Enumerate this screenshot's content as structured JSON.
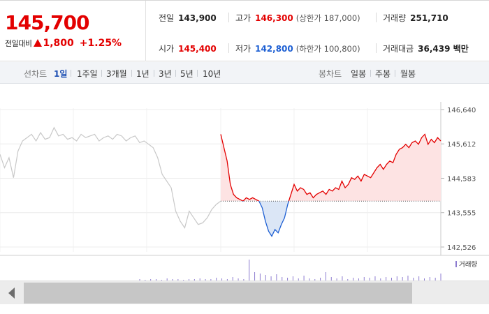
{
  "quote": {
    "price": "145,700",
    "change_label": "전일대비",
    "change_value": "1,800",
    "change_pct": "+1.25%",
    "prev_close_label": "전일",
    "prev_close": "143,900",
    "high_label": "고가",
    "high": "146,300",
    "upper_limit": "(상한가 187,000)",
    "volume_label": "거래량",
    "volume": "251,710",
    "open_label": "시가",
    "open": "145,400",
    "low_label": "저가",
    "low": "142,800",
    "lower_limit": "(하한가 100,800)",
    "amount_label": "거래대금",
    "amount": "36,439 백만"
  },
  "periods": {
    "label": "선차트",
    "items": [
      "1일",
      "1주일",
      "3개월",
      "1년",
      "3년",
      "5년",
      "10년"
    ],
    "active": "1일"
  },
  "candles": {
    "label": "봉차트",
    "items": [
      "일봉",
      "주봉",
      "월봉"
    ]
  },
  "volume_legend": "거래량",
  "colors": {
    "up": "#e30000",
    "down": "#1d5fd3",
    "prev": "#c8c8c8"
  },
  "chart_data": {
    "type": "line",
    "ylim": [
      142526,
      146640
    ],
    "yticks": [
      146640,
      145612,
      144583,
      143555,
      142526
    ],
    "ytick_labels": [
      "146,640",
      "145,612",
      "144,583",
      "143,555",
      "142,526"
    ],
    "baseline": 143900,
    "series": [
      {
        "values": [
          145300,
          144900,
          145200,
          144600,
          145400,
          145700,
          145800,
          145900,
          145700,
          145950,
          145750,
          145800,
          146100,
          145850,
          145900,
          145750,
          145800,
          145700,
          145900,
          145800,
          145850,
          145900,
          145700,
          145800,
          145850,
          145750,
          145900,
          145850,
          145700,
          145800,
          145850,
          145650,
          145700,
          145600,
          145500,
          145200,
          144700,
          144500,
          144300,
          143600,
          143300,
          143100,
          143600,
          143400,
          143200,
          143250,
          143400,
          143650,
          143800,
          143900
        ]
      },
      {
        "values": [
          145900,
          145500,
          145100,
          144400,
          144100,
          144000,
          143950,
          143900,
          144000,
          143950,
          144000,
          143950,
          143900,
          143700,
          143300,
          143000,
          142850,
          143050,
          142950,
          143200,
          143400,
          143800,
          144100,
          144400,
          144200,
          144300,
          144250,
          144100,
          144150,
          144000,
          144100,
          144150,
          144200,
          144100,
          144250,
          144200,
          144300,
          144250,
          144500,
          144300,
          144400,
          144600,
          144550,
          144650,
          144500,
          144700,
          144650,
          144600,
          144750,
          144900,
          145000,
          144850,
          145000,
          145100,
          145050,
          145300,
          145450,
          145500,
          145600,
          145500,
          145650,
          145700,
          145600,
          145800,
          145900,
          145600,
          145750,
          145650,
          145800,
          145700
        ]
      }
    ],
    "volume": {
      "values": [
        2,
        1,
        2,
        2,
        1,
        3,
        2,
        2,
        1,
        2,
        2,
        3,
        2,
        2,
        4,
        3,
        2,
        5,
        3,
        2,
        30,
        12,
        10,
        8,
        6,
        9,
        5,
        4,
        6,
        3,
        7,
        3,
        2,
        4,
        12,
        5,
        3,
        6,
        2,
        4,
        3,
        5,
        4,
        6,
        3,
        5,
        4,
        6,
        5,
        7,
        4,
        6,
        3,
        5,
        4,
        10
      ]
    }
  }
}
